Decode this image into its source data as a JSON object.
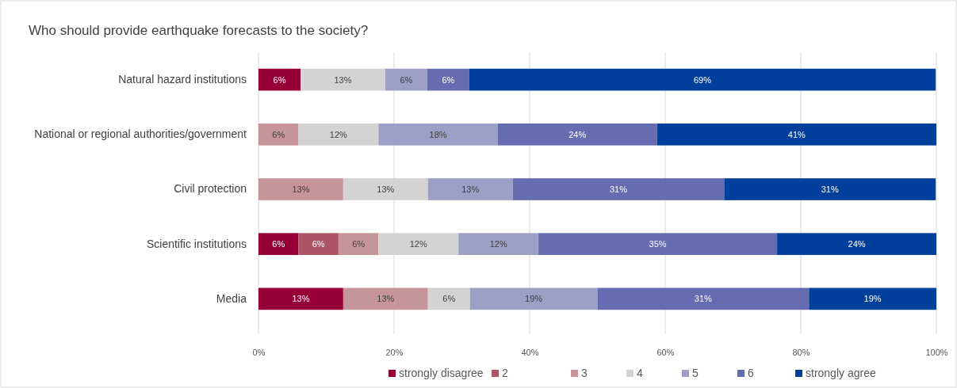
{
  "chart_data": {
    "type": "bar",
    "orientation": "horizontal",
    "stacked": true,
    "title": "Who should provide earthquake forecasts to the society?",
    "categories": [
      "Natural hazard institutions",
      "National or regional authorities/government",
      "Civil protection",
      "Scientific institutions",
      "Media"
    ],
    "series": [
      {
        "name": "strongly disagree",
        "color": "#960036",
        "values": [
          6.2,
          null,
          null,
          5.9,
          12.5
        ],
        "value_labels": [
          "6%",
          null,
          null,
          "6%",
          "13%"
        ]
      },
      {
        "name": "2",
        "color": "#ae5565",
        "values": [
          null,
          null,
          null,
          5.9,
          null
        ],
        "value_labels": [
          null,
          null,
          null,
          "6%",
          null
        ]
      },
      {
        "name": "3",
        "color": "#c6959a",
        "values": [
          null,
          5.9,
          12.5,
          5.9,
          12.5
        ],
        "value_labels": [
          null,
          "6%",
          "13%",
          "6%",
          "13%"
        ]
      },
      {
        "name": "4",
        "color": "#d3d3d3",
        "values": [
          12.5,
          11.8,
          12.5,
          11.8,
          6.2
        ],
        "value_labels": [
          "13%",
          "12%",
          "13%",
          "12%",
          "6%"
        ]
      },
      {
        "name": "5",
        "color": "#9d9fc4",
        "values": [
          6.2,
          17.6,
          12.5,
          11.8,
          18.8
        ],
        "value_labels": [
          "6%",
          "18%",
          "13%",
          "12%",
          "19%"
        ]
      },
      {
        "name": "6",
        "color": "#656cb0",
        "values": [
          6.2,
          23.5,
          31.2,
          35.2,
          31.2
        ],
        "value_labels": [
          "6%",
          "24%",
          "31%",
          "35%",
          "31%"
        ]
      },
      {
        "name": "strongly agree",
        "color": "#00409c",
        "values": [
          68.8,
          41.2,
          31.2,
          23.5,
          18.8
        ],
        "value_labels": [
          "69%",
          "41%",
          "31%",
          "24%",
          "19%"
        ]
      }
    ],
    "xlim": [
      0,
      100
    ],
    "xticks": [
      {
        "value": 0,
        "label": "0%"
      },
      {
        "value": 20,
        "label": "20%"
      },
      {
        "value": 40,
        "label": "40%"
      },
      {
        "value": 60,
        "label": "60%"
      },
      {
        "value": 80,
        "label": "80%"
      },
      {
        "value": 100,
        "label": "100%"
      }
    ],
    "grid": "x",
    "legend": "bottom"
  }
}
